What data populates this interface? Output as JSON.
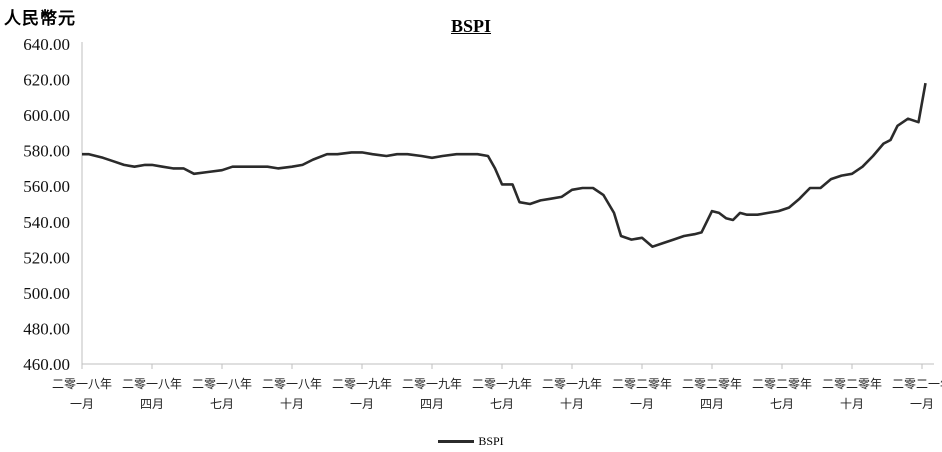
{
  "chart_data": {
    "type": "line",
    "title": "BSPI",
    "ylabel": "人民幣元",
    "ylim": [
      460,
      640
    ],
    "yticks": [
      "640.00",
      "620.00",
      "600.00",
      "580.00",
      "560.00",
      "540.00",
      "520.00",
      "500.00",
      "480.00",
      "460.00"
    ],
    "ytick_values": [
      640,
      620,
      600,
      580,
      560,
      540,
      520,
      500,
      480,
      460
    ],
    "xticks": [
      {
        "line1": "二零一八年",
        "line2": "一月"
      },
      {
        "line1": "二零一八年",
        "line2": "四月"
      },
      {
        "line1": "二零一八年",
        "line2": "七月"
      },
      {
        "line1": "二零一八年",
        "line2": "十月"
      },
      {
        "line1": "二零一九年",
        "line2": "一月"
      },
      {
        "line1": "二零一九年",
        "line2": "四月"
      },
      {
        "line1": "二零一九年",
        "line2": "七月"
      },
      {
        "line1": "二零一九年",
        "line2": "十月"
      },
      {
        "line1": "二零二零年",
        "line2": "一月"
      },
      {
        "line1": "二零二零年",
        "line2": "四月"
      },
      {
        "line1": "二零二零年",
        "line2": "七月"
      },
      {
        "line1": "二零二零年",
        "line2": "十月"
      },
      {
        "line1": "二零二一年",
        "line2": "一月"
      }
    ],
    "legend": "bottom-center",
    "grid": false,
    "series": [
      {
        "name": "BSPI",
        "color": "#2b2b2b",
        "points": [
          [
            0,
            578
          ],
          [
            0.2,
            578
          ],
          [
            0.4,
            577
          ],
          [
            0.6,
            576
          ],
          [
            0.9,
            574
          ],
          [
            1.2,
            572
          ],
          [
            1.5,
            571
          ],
          [
            1.8,
            572
          ],
          [
            2.0,
            572
          ],
          [
            2.3,
            571
          ],
          [
            2.6,
            570
          ],
          [
            2.9,
            570
          ],
          [
            3.2,
            567
          ],
          [
            3.6,
            568
          ],
          [
            4.0,
            569
          ],
          [
            4.3,
            571
          ],
          [
            4.6,
            571
          ],
          [
            5.0,
            571
          ],
          [
            5.3,
            571
          ],
          [
            5.6,
            570
          ],
          [
            6.0,
            571
          ],
          [
            6.3,
            572
          ],
          [
            6.6,
            575
          ],
          [
            7.0,
            578
          ],
          [
            7.3,
            578
          ],
          [
            7.7,
            579
          ],
          [
            8.0,
            579
          ],
          [
            8.3,
            578
          ],
          [
            8.7,
            577
          ],
          [
            9.0,
            578
          ],
          [
            9.3,
            578
          ],
          [
            9.7,
            577
          ],
          [
            10.0,
            576
          ],
          [
            10.3,
            577
          ],
          [
            10.7,
            578
          ],
          [
            11.0,
            578
          ],
          [
            11.3,
            578
          ],
          [
            11.6,
            577
          ],
          [
            11.8,
            570
          ],
          [
            12.0,
            561
          ],
          [
            12.3,
            561
          ],
          [
            12.5,
            551
          ],
          [
            12.8,
            550
          ],
          [
            13.1,
            552
          ],
          [
            13.4,
            553
          ],
          [
            13.7,
            554
          ],
          [
            14.0,
            558
          ],
          [
            14.3,
            559
          ],
          [
            14.6,
            559
          ],
          [
            14.9,
            555
          ],
          [
            15.2,
            545
          ],
          [
            15.4,
            532
          ],
          [
            15.7,
            530
          ],
          [
            16.0,
            531
          ],
          [
            16.3,
            526
          ],
          [
            16.6,
            528
          ],
          [
            16.9,
            530
          ],
          [
            17.2,
            532
          ],
          [
            17.5,
            533
          ],
          [
            17.7,
            534
          ],
          [
            18.0,
            546
          ],
          [
            18.2,
            545
          ],
          [
            18.4,
            542
          ],
          [
            18.6,
            541
          ],
          [
            18.8,
            545
          ],
          [
            19.0,
            544
          ],
          [
            19.3,
            544
          ],
          [
            19.6,
            545
          ],
          [
            19.9,
            546
          ],
          [
            20.2,
            548
          ],
          [
            20.5,
            553
          ],
          [
            20.8,
            559
          ],
          [
            21.1,
            559
          ],
          [
            21.4,
            564
          ],
          [
            21.7,
            566
          ],
          [
            22.0,
            567
          ],
          [
            22.3,
            571
          ],
          [
            22.6,
            577
          ],
          [
            22.9,
            584
          ],
          [
            23.1,
            586
          ],
          [
            23.3,
            594
          ],
          [
            23.6,
            598
          ],
          [
            23.9,
            596
          ],
          [
            24.1,
            618
          ]
        ]
      }
    ]
  }
}
